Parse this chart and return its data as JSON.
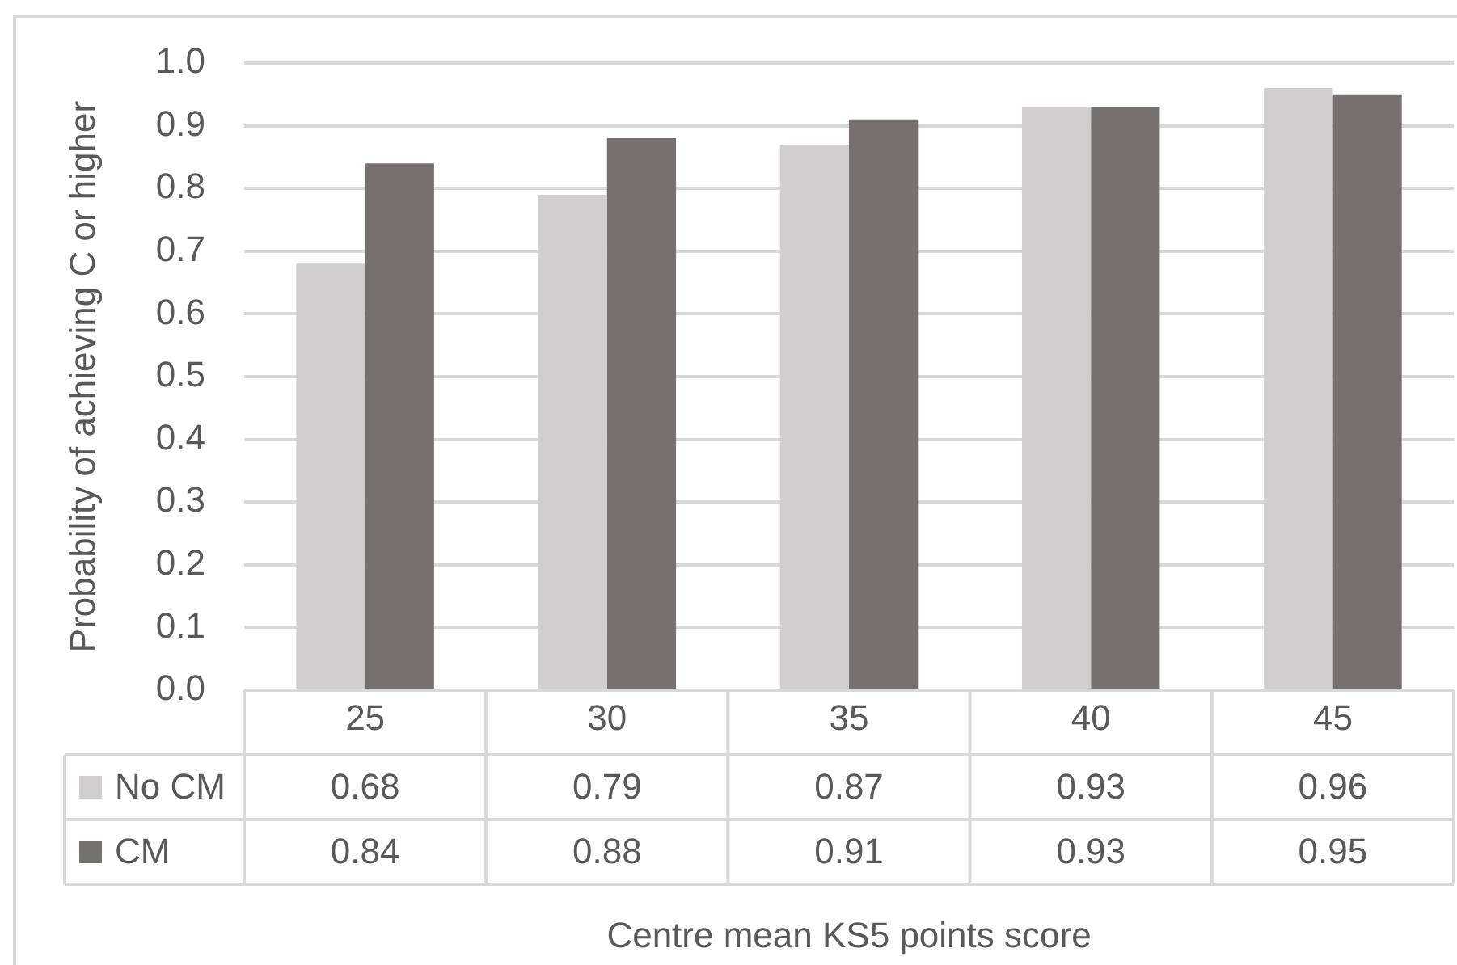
{
  "chart_data": {
    "type": "bar",
    "categories": [
      "25",
      "30",
      "35",
      "40",
      "45"
    ],
    "series": [
      {
        "name": "No CM",
        "color": "#d0cecf",
        "values": [
          0.68,
          0.79,
          0.87,
          0.93,
          0.96
        ]
      },
      {
        "name": "CM",
        "color": "#767171",
        "values": [
          0.84,
          0.88,
          0.91,
          0.93,
          0.95
        ]
      }
    ],
    "xlabel": "Centre mean KS5 points score",
    "ylabel": "Probability of achieving C or higher",
    "ylim": [
      0,
      1
    ],
    "yticks": [
      {
        "value": 0,
        "label": "0.0"
      },
      0.1,
      0.2,
      0.3,
      0.4,
      0.5,
      0.6,
      0.7,
      0.8,
      0.9,
      {
        "value": 1,
        "label": "1.0"
      }
    ],
    "grid": "y",
    "legend": "bottom left",
    "data_labels": true
  }
}
